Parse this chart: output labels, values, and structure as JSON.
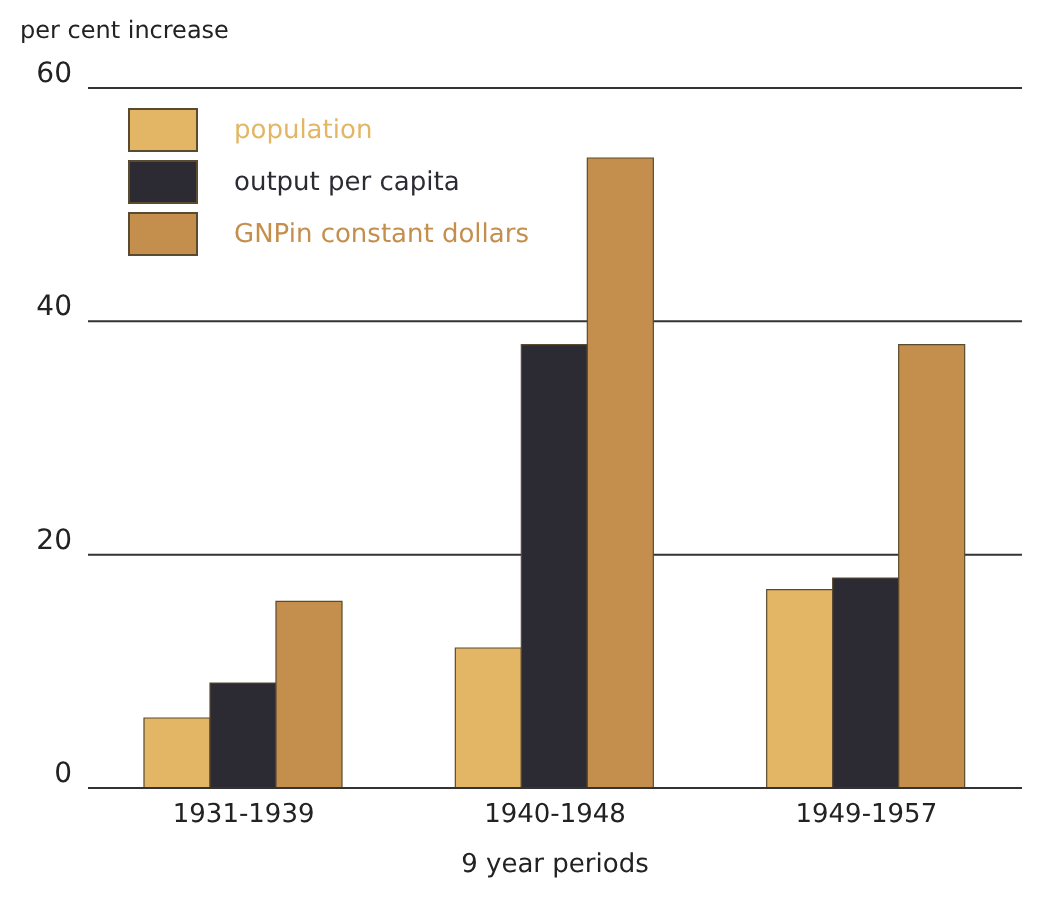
{
  "chart_data": {
    "type": "bar",
    "ylabel": "per cent increase",
    "xlabel": "9 year periods",
    "categories": [
      "1931-1939",
      "1940-1948",
      "1949-1957"
    ],
    "series": [
      {
        "name": "population",
        "color": "#e3b665",
        "values": [
          6,
          12,
          17
        ]
      },
      {
        "name": "output per capita",
        "color": "#2c2a33",
        "values": [
          9,
          38,
          18
        ]
      },
      {
        "name": "GNPin constant dollars",
        "color": "#c48f4c",
        "values": [
          16,
          54,
          38
        ]
      }
    ],
    "ylim": [
      0,
      60
    ],
    "yticks": [
      0,
      20,
      40,
      60
    ],
    "grid": "y",
    "legend": "top left"
  }
}
